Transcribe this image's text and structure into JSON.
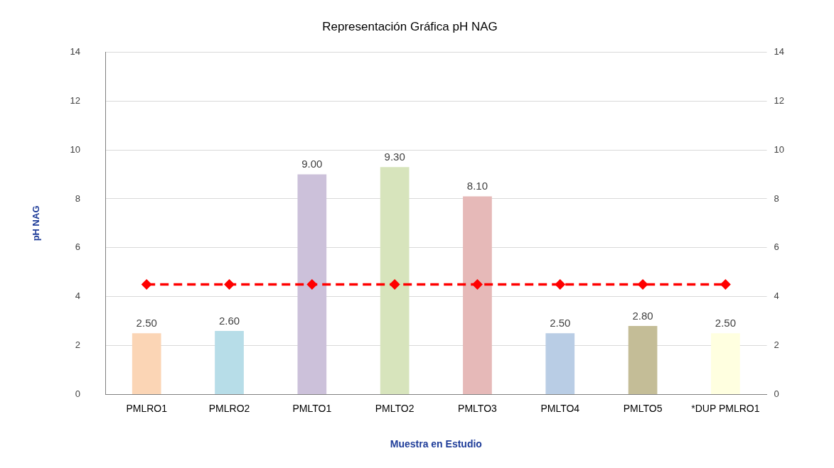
{
  "chart_data": {
    "type": "bar",
    "title": "Representación Gráfica pH NAG",
    "xlabel": "Muestra en Estudio",
    "ylabel": "pH NAG",
    "categories": [
      "PMLRO1",
      "PMLRO2",
      "PMLTO1",
      "PMLTO2",
      "PMLTO3",
      "PMLTO4",
      "PMLTO5",
      "*DUP PMLRO1"
    ],
    "series": [
      {
        "values": [
          2.5,
          2.6,
          9.0,
          9.3,
          8.1,
          2.5,
          2.8,
          2.5
        ],
        "colors": [
          "#fbd5b5",
          "#b7dde8",
          "#ccc1da",
          "#d7e4bc",
          "#e6b9b8",
          "#b9cde5",
          "#c4bd97",
          "#ffffe0"
        ],
        "value_labels": [
          "2.50",
          "2.60",
          "9.00",
          "9.30",
          "8.10",
          "2.50",
          "2.80",
          "2.50"
        ]
      },
      {
        "type": "line",
        "values": [
          4.5,
          4.5,
          4.5,
          4.5,
          4.5,
          4.5,
          4.5,
          4.5
        ],
        "color": "#ff0000",
        "marker": "diamond",
        "line_style": "dashed"
      }
    ],
    "ylim": [
      0,
      14
    ],
    "yticks": [
      0,
      2,
      4,
      6,
      8,
      10,
      12,
      14
    ],
    "y2lim": [
      0,
      14
    ],
    "y2ticks": [
      0,
      2,
      4,
      6,
      8,
      10,
      12,
      14
    ],
    "grid": "y"
  }
}
